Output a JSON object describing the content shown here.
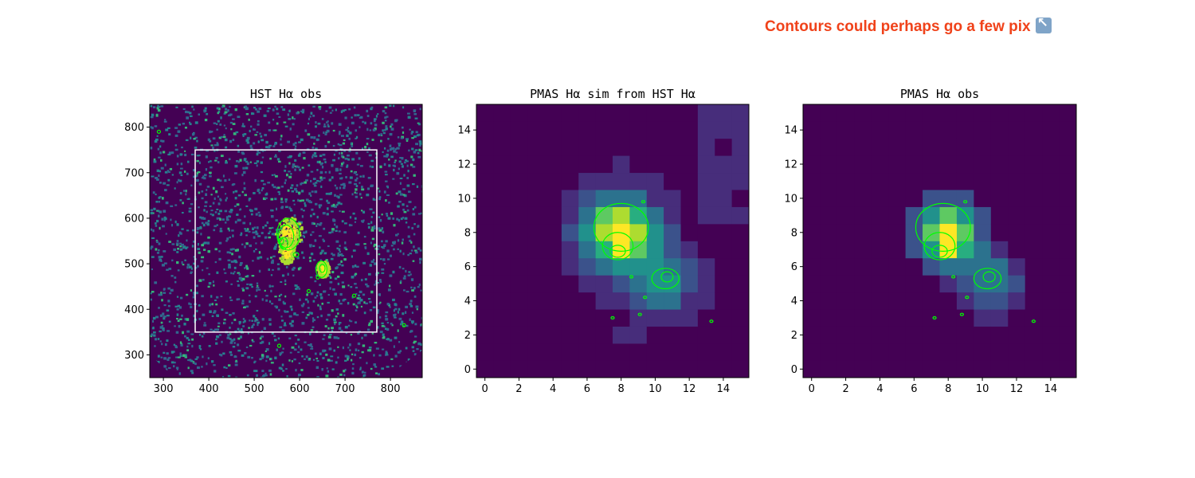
{
  "annotation": {
    "text": "Contours could perhaps go a few pix",
    "icon": "arrow-up-left-icon",
    "color": "#f0421a"
  },
  "colors": {
    "background": "#440154",
    "contour": "#00ff00",
    "box": "#ffffff",
    "colormap": "viridis"
  },
  "chart_data": [
    {
      "type": "heatmap",
      "title": "HST Hα obs",
      "xlim": [
        270,
        870
      ],
      "ylim": [
        250,
        850
      ],
      "xticks": [
        300,
        400,
        500,
        600,
        700,
        800
      ],
      "yticks": [
        300,
        400,
        500,
        600,
        700,
        800
      ],
      "overlay_box": {
        "x": [
          370,
          770
        ],
        "y": [
          350,
          750
        ]
      },
      "contours": "Hα emission contours over two knots near (575, 550) and (650, 490)"
    },
    {
      "type": "heatmap",
      "title": "PMAS Hα sim from HST Hα",
      "xlim": [
        -0.5,
        15.5
      ],
      "ylim": [
        -0.5,
        15.5
      ],
      "xticks": [
        0,
        2,
        4,
        6,
        8,
        10,
        12,
        14
      ],
      "yticks": [
        0,
        2,
        4,
        6,
        8,
        10,
        12,
        14
      ],
      "peak_pixel": [
        8,
        8
      ],
      "contours": "Hα emission contours"
    },
    {
      "type": "heatmap",
      "title": "PMAS Hα obs",
      "xlim": [
        -0.5,
        15.5
      ],
      "ylim": [
        -0.5,
        15.5
      ],
      "xticks": [
        0,
        2,
        4,
        6,
        8,
        10,
        12,
        14
      ],
      "yticks": [
        0,
        2,
        4,
        6,
        8,
        10,
        12,
        14
      ],
      "peak_pixel": [
        8,
        8
      ],
      "contours": "Hα emission contours"
    }
  ]
}
